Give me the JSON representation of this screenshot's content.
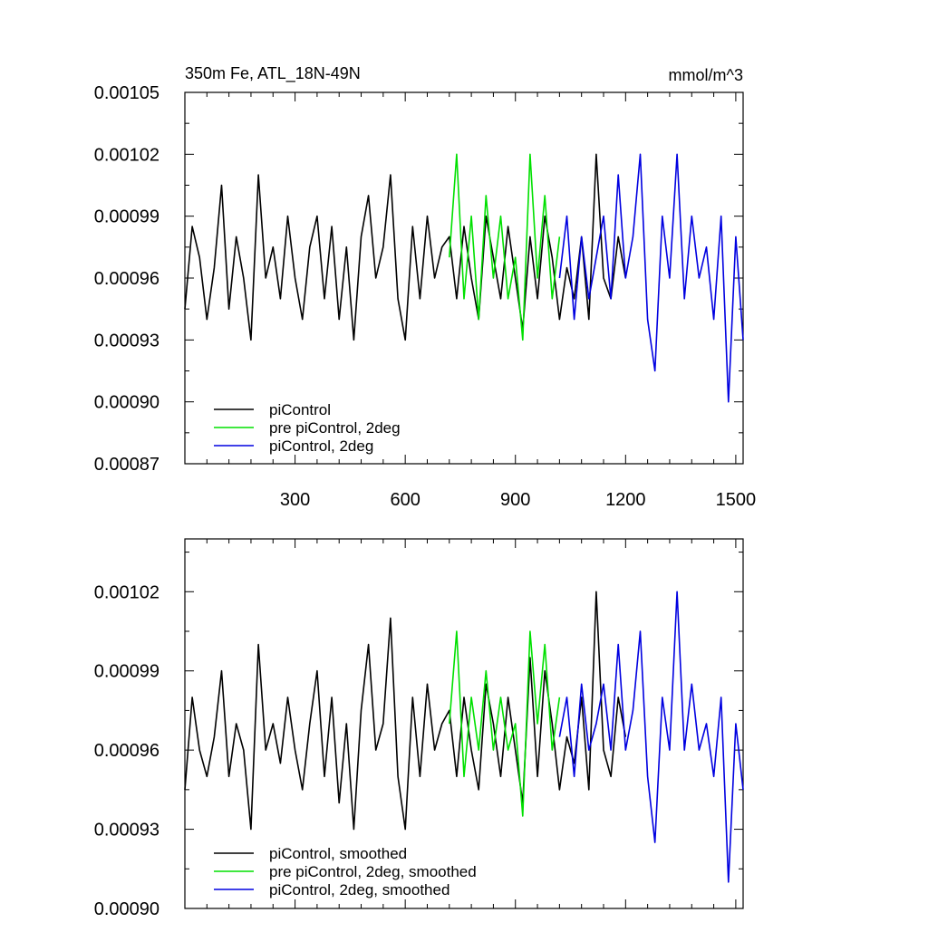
{
  "chart_data": [
    {
      "type": "line",
      "title": "350m Fe, ATL_18N-49N",
      "units": "mmol/m^3",
      "xlim": [
        0,
        1520
      ],
      "ylim": [
        0.00087,
        0.00105
      ],
      "x_ticks": [
        300,
        600,
        900,
        1200,
        1500
      ],
      "x_tick_labels": [
        "300",
        "600",
        "900",
        "1200",
        "1500"
      ],
      "y_ticks": [
        0.00087,
        0.0009,
        0.00093,
        0.00096,
        0.00099,
        0.00102,
        0.00105
      ],
      "y_tick_labels": [
        "0.00087",
        "0.00090",
        "0.00093",
        "0.00096",
        "0.00099",
        "0.00102",
        "0.00105"
      ],
      "legend_position": "bottom-left",
      "series": [
        {
          "name": "piControl",
          "color": "#000000",
          "x": [
            0,
            20,
            40,
            60,
            80,
            100,
            120,
            140,
            160,
            180,
            200,
            220,
            240,
            260,
            280,
            300,
            320,
            340,
            360,
            380,
            400,
            420,
            440,
            460,
            480,
            500,
            520,
            540,
            560,
            580,
            600,
            620,
            640,
            660,
            680,
            700,
            720,
            740,
            760,
            780,
            800,
            820,
            840,
            860,
            880,
            900,
            920,
            940,
            960,
            980,
            1000,
            1020,
            1040,
            1060,
            1080,
            1100,
            1120,
            1140,
            1160,
            1180,
            1200
          ],
          "values": [
            0.000945,
            0.000985,
            0.00097,
            0.00094,
            0.000965,
            0.001005,
            0.000945,
            0.00098,
            0.00096,
            0.00093,
            0.00101,
            0.00096,
            0.000975,
            0.00095,
            0.00099,
            0.00096,
            0.00094,
            0.000975,
            0.00099,
            0.00095,
            0.000985,
            0.00094,
            0.000975,
            0.00093,
            0.00098,
            0.001,
            0.00096,
            0.000975,
            0.00101,
            0.00095,
            0.00093,
            0.000985,
            0.00095,
            0.00099,
            0.00096,
            0.000975,
            0.00098,
            0.00095,
            0.000985,
            0.00096,
            0.00094,
            0.00099,
            0.00097,
            0.00095,
            0.000985,
            0.00096,
            0.000935,
            0.00098,
            0.00095,
            0.00099,
            0.00097,
            0.00094,
            0.000965,
            0.00095,
            0.00098,
            0.00094,
            0.00102,
            0.00096,
            0.00095,
            0.00098,
            0.00096
          ]
        },
        {
          "name": "pre piControl, 2deg",
          "color": "#00e000",
          "x": [
            720,
            740,
            760,
            780,
            800,
            820,
            840,
            860,
            880,
            900,
            920,
            940,
            960,
            980,
            1000,
            1020
          ],
          "values": [
            0.00097,
            0.00102,
            0.00095,
            0.00099,
            0.00094,
            0.001,
            0.00096,
            0.00099,
            0.00095,
            0.00097,
            0.00093,
            0.00102,
            0.00096,
            0.001,
            0.00095,
            0.00098
          ]
        },
        {
          "name": "piControl, 2deg",
          "color": "#0000e0",
          "x": [
            1020,
            1040,
            1060,
            1080,
            1100,
            1120,
            1140,
            1160,
            1180,
            1200,
            1220,
            1240,
            1260,
            1280,
            1300,
            1320,
            1340,
            1360,
            1380,
            1400,
            1420,
            1440,
            1460,
            1480,
            1500,
            1520
          ],
          "values": [
            0.00096,
            0.00099,
            0.00094,
            0.00098,
            0.00095,
            0.00097,
            0.00099,
            0.00095,
            0.00101,
            0.00096,
            0.00098,
            0.00102,
            0.00094,
            0.000915,
            0.00099,
            0.00096,
            0.00102,
            0.00095,
            0.00099,
            0.00096,
            0.000975,
            0.00094,
            0.00099,
            0.0009,
            0.00098,
            0.00093
          ]
        }
      ]
    },
    {
      "type": "line",
      "xlim": [
        0,
        1520
      ],
      "ylim": [
        0.0009,
        0.00104
      ],
      "x_ticks": [
        300,
        600,
        900,
        1200,
        1500
      ],
      "y_ticks": [
        0.0009,
        0.00093,
        0.00096,
        0.00099,
        0.00102
      ],
      "y_tick_labels": [
        "0.00090",
        "0.00093",
        "0.00096",
        "0.00099",
        "0.00102"
      ],
      "legend_position": "bottom-left",
      "series": [
        {
          "name": "piControl, smoothed",
          "color": "#000000",
          "x": [
            0,
            20,
            40,
            60,
            80,
            100,
            120,
            140,
            160,
            180,
            200,
            220,
            240,
            260,
            280,
            300,
            320,
            340,
            360,
            380,
            400,
            420,
            440,
            460,
            480,
            500,
            520,
            540,
            560,
            580,
            600,
            620,
            640,
            660,
            680,
            700,
            720,
            740,
            760,
            780,
            800,
            820,
            840,
            860,
            880,
            900,
            920,
            940,
            960,
            980,
            1000,
            1020,
            1040,
            1060,
            1080,
            1100,
            1120,
            1140,
            1160,
            1180,
            1200
          ],
          "values": [
            0.000945,
            0.00098,
            0.00096,
            0.00095,
            0.000965,
            0.00099,
            0.00095,
            0.00097,
            0.00096,
            0.00093,
            0.001,
            0.00096,
            0.00097,
            0.000955,
            0.00098,
            0.00096,
            0.000945,
            0.00097,
            0.00099,
            0.00095,
            0.00098,
            0.00094,
            0.00097,
            0.00093,
            0.000975,
            0.001,
            0.00096,
            0.00097,
            0.00101,
            0.00095,
            0.00093,
            0.00098,
            0.00095,
            0.000985,
            0.00096,
            0.00097,
            0.000975,
            0.00095,
            0.00098,
            0.00096,
            0.000945,
            0.000985,
            0.00097,
            0.00095,
            0.00098,
            0.00096,
            0.00094,
            0.000995,
            0.00095,
            0.00099,
            0.00097,
            0.000945,
            0.000965,
            0.000955,
            0.00098,
            0.000945,
            0.00102,
            0.00096,
            0.00095,
            0.00098,
            0.000965
          ]
        },
        {
          "name": "pre piControl, 2deg, smoothed",
          "color": "#00e000",
          "x": [
            720,
            740,
            760,
            780,
            800,
            820,
            840,
            860,
            880,
            900,
            920,
            940,
            960,
            980,
            1000,
            1020
          ],
          "values": [
            0.00097,
            0.001005,
            0.00095,
            0.00098,
            0.00096,
            0.00099,
            0.00096,
            0.00098,
            0.00096,
            0.00097,
            0.000935,
            0.001005,
            0.00097,
            0.001,
            0.00096,
            0.00098
          ]
        },
        {
          "name": "piControl, 2deg, smoothed",
          "color": "#0000e0",
          "x": [
            1020,
            1040,
            1060,
            1080,
            1100,
            1120,
            1140,
            1160,
            1180,
            1200,
            1220,
            1240,
            1260,
            1280,
            1300,
            1320,
            1340,
            1360,
            1380,
            1400,
            1420,
            1440,
            1460,
            1480,
            1500,
            1520
          ],
          "values": [
            0.000965,
            0.00098,
            0.00095,
            0.000985,
            0.00096,
            0.00097,
            0.000985,
            0.00096,
            0.001,
            0.00096,
            0.000975,
            0.001005,
            0.00095,
            0.000925,
            0.00098,
            0.00096,
            0.00102,
            0.00096,
            0.000985,
            0.00096,
            0.00097,
            0.00095,
            0.00098,
            0.00091,
            0.00097,
            0.000945
          ]
        }
      ]
    }
  ]
}
